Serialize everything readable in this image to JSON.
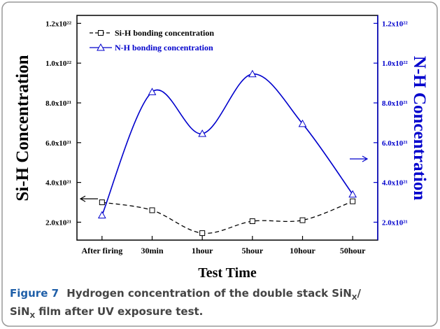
{
  "chart_data": {
    "type": "line",
    "categories": [
      "After firing",
      "30min",
      "1hour",
      "5hour",
      "10hour",
      "50hour"
    ],
    "series": [
      {
        "name": "Si-H bonding concentration",
        "color": "#000000",
        "axis": "y",
        "marker": "square",
        "line_style": "dashed",
        "values": [
          3e+21,
          2.6e+21,
          1.45e+21,
          2.05e+21,
          2.1e+21,
          3.05e+21
        ]
      },
      {
        "name": "N-H bonding concentration",
        "color": "#0000cc",
        "axis": "y2",
        "marker": "triangle",
        "line_style": "solid",
        "values": [
          2.35e+21,
          8.55e+21,
          6.45e+21,
          9.45e+21,
          6.95e+21,
          3.4e+21
        ]
      }
    ],
    "xlabel": "Test Time",
    "ylabel": "Si-H Concentration",
    "y2label": "N-H Concentration",
    "ylim": [
      1.1e+21,
      1.24e+22
    ],
    "yticks": [
      {
        "value": 2e+21,
        "label": "2.0x10²¹"
      },
      {
        "value": 4e+21,
        "label": "4.0x10²¹"
      },
      {
        "value": 6e+21,
        "label": "6.0x10²¹"
      },
      {
        "value": 8e+21,
        "label": "8.0x10²¹"
      },
      {
        "value": 1e+22,
        "label": "1.0x10²²"
      },
      {
        "value": 1.2e+22,
        "label": "1.2x10²²"
      }
    ],
    "y2lim": [
      1.1e+21,
      1.24e+22
    ],
    "y2ticks": [
      {
        "value": 2e+21,
        "label": "2.0x10²¹"
      },
      {
        "value": 4e+21,
        "label": "4.0x10²¹"
      },
      {
        "value": 6e+21,
        "label": "6.0x10²¹"
      },
      {
        "value": 8e+21,
        "label": "8.0x10²¹"
      },
      {
        "value": 1e+22,
        "label": "1.0x10²²"
      },
      {
        "value": 1.2e+22,
        "label": "1.2x10²²"
      }
    ],
    "legend": "upper left"
  },
  "caption": {
    "label": "Figure 7",
    "lines": [
      [
        "Hydrogen concentration of the double stack SiN",
        "X",
        "/"
      ],
      [
        "SiN",
        "X",
        "film after UV exposure test."
      ]
    ]
  }
}
